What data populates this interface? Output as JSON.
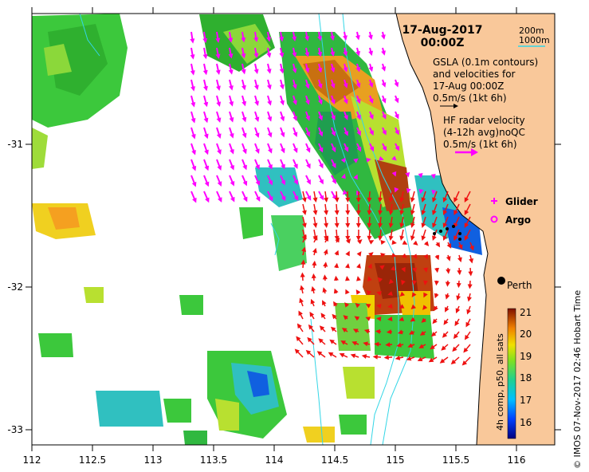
{
  "header": {
    "date": "17-Aug-2017",
    "time": "00:00Z"
  },
  "legend": {
    "contour_200": "200m",
    "contour_1000": "1000m",
    "gsla_line1": "GSLA (0.1m contours)",
    "gsla_line2": "and velocities for",
    "gsla_line3": "17-Aug 00:00Z",
    "gsla_scale": "0.5m/s (1kt 6h)",
    "hf_line1": "HF radar velocity",
    "hf_line2": "(4-12h avg)noQC",
    "hf_scale": "0.5m/s (1kt 6h)",
    "glider": "Glider",
    "argo": "Argo",
    "city": "Perth"
  },
  "colorbar": {
    "label": "4h comp, p50, all sats",
    "ticks": [
      "21",
      "20",
      "19",
      "18",
      "17",
      "16"
    ]
  },
  "credit": "© IMOS 07-Nov-2017 02:46 Hobart Time",
  "axes": {
    "x_ticks": [
      "112",
      "112.5",
      "113",
      "113.5",
      "114",
      "114.5",
      "115",
      "115.5",
      "116"
    ],
    "y_ticks": [
      "-31",
      "-32",
      "-33"
    ]
  },
  "colors": {
    "land": "#f9c89a",
    "gsla_arrow": "#ff00ff",
    "hf_arrow": "#ee1111",
    "contour": "#33d6e6"
  }
}
